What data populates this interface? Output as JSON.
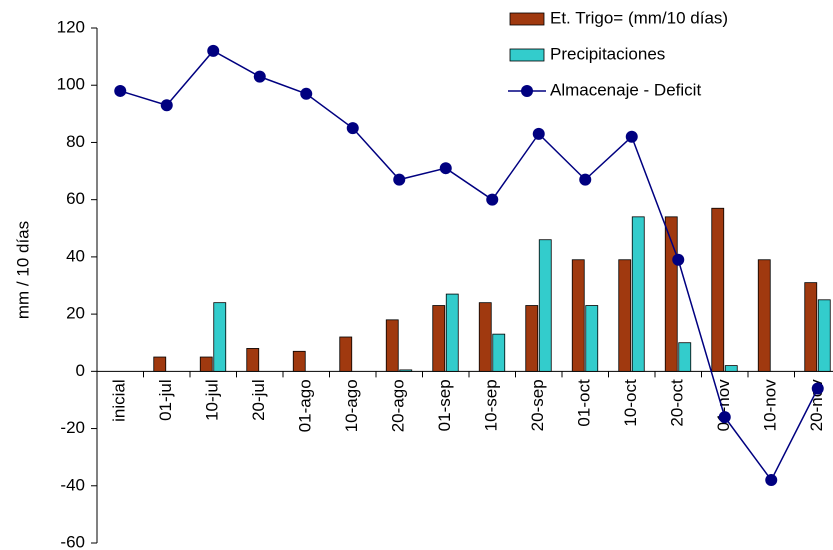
{
  "chart_data": {
    "type": "bar-line",
    "y_label": "mm / 10 días",
    "categories": [
      "inicial",
      "01-jul",
      "10-jul",
      "20-jul",
      "01-ago",
      "10-ago",
      "20-ago",
      "01-sep",
      "10-sep",
      "20-sep",
      "01-oct",
      "10-oct",
      "20-oct",
      "01-nov",
      "10-nov",
      "20-nov"
    ],
    "series": [
      {
        "name": "Et. Trigo= (mm/10 días)",
        "type": "bar",
        "color": "#a0390f",
        "values": [
          null,
          5,
          5,
          8,
          7,
          12,
          18,
          23,
          24,
          23,
          39,
          39,
          54,
          57,
          39,
          31
        ]
      },
      {
        "name": "Precipitaciones",
        "type": "bar",
        "color": "#33cccc",
        "values": [
          null,
          0,
          24,
          0,
          0,
          0,
          0.5,
          27,
          13,
          46,
          23,
          54,
          10,
          2,
          0,
          25
        ]
      },
      {
        "name": "Almacenaje - Deficit",
        "type": "line",
        "color": "#000080",
        "values": [
          98,
          93,
          112,
          103,
          97,
          85,
          67,
          71,
          60,
          83,
          67,
          82,
          39,
          -16,
          -38,
          -6
        ]
      }
    ],
    "ylim": [
      -60,
      120
    ],
    "yticks": [
      -60,
      -40,
      -20,
      0,
      20,
      40,
      60,
      80,
      100,
      120
    ],
    "grid": false
  }
}
